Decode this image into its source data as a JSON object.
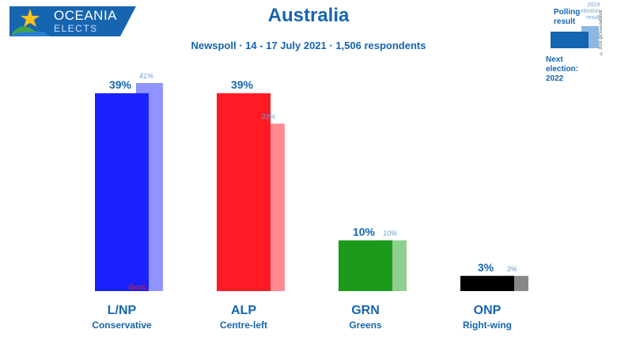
{
  "header": {
    "brand_top": "OCEANIA",
    "brand_bottom": "ELECTS",
    "title": "Australia",
    "subtitle": "Newspoll · 14 - 17 July 2021 · 1,506 respondents"
  },
  "legend": {
    "polling_label": "Polling result",
    "prev_label": "2019 election result",
    "next_election": "Next election: 2022",
    "copyright": "© 2019 @OceaniaElects"
  },
  "govt_label": "Govt.",
  "colors": {
    "brand": "#1565b0",
    "lnp": "#1a22ff",
    "lnp_prev": "#8f94ff",
    "alp": "#ff1a24",
    "alp_prev": "#ff8a90",
    "grn": "#1c9a1c",
    "grn_prev": "#8fd08f",
    "onp": "#000000",
    "onp_prev": "#888888"
  },
  "chart_data": {
    "type": "bar",
    "title": "Australia",
    "subtitle": "Newspoll · 14 - 17 July 2021 · 1,506 respondents",
    "categories": [
      "L/NP",
      "ALP",
      "GRN",
      "ONP"
    ],
    "descriptions": [
      "Conservative",
      "Centre-left",
      "Greens",
      "Right-wing"
    ],
    "series": [
      {
        "name": "Polling result",
        "values": [
          39,
          39,
          10,
          3
        ],
        "labels": [
          "39%",
          "39%",
          "10%",
          "3%"
        ]
      },
      {
        "name": "2019 election result",
        "values": [
          41,
          33,
          10,
          3
        ],
        "labels": [
          "41%",
          "33%",
          "10%",
          "3%"
        ]
      }
    ],
    "ylim": [
      0,
      41
    ],
    "grid": false
  }
}
